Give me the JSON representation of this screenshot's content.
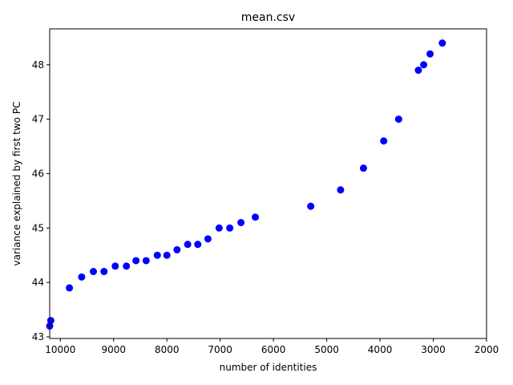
{
  "chart_data": {
    "type": "scatter",
    "title": "mean.csv",
    "xlabel": "number of identities",
    "ylabel": "variance explained by first two PC",
    "xlim": [
      10200,
      2000
    ],
    "ylim": [
      42.97,
      48.66
    ],
    "x_ticks": [
      10000,
      9000,
      8000,
      7000,
      6000,
      5000,
      4000,
      3000,
      2000
    ],
    "y_ticks": [
      43,
      44,
      45,
      46,
      47,
      48
    ],
    "grid": false,
    "marker_color": "#0000ff",
    "series": [
      {
        "points": [
          [
            10200,
            43.2
          ],
          [
            10180,
            43.3
          ],
          [
            9830,
            43.9
          ],
          [
            9600,
            44.1
          ],
          [
            9380,
            44.2
          ],
          [
            9180,
            44.2
          ],
          [
            8970,
            44.3
          ],
          [
            8760,
            44.3
          ],
          [
            8580,
            44.4
          ],
          [
            8390,
            44.4
          ],
          [
            8180,
            44.5
          ],
          [
            8000,
            44.5
          ],
          [
            7810,
            44.6
          ],
          [
            7610,
            44.7
          ],
          [
            7420,
            44.7
          ],
          [
            7230,
            44.8
          ],
          [
            7020,
            45.0
          ],
          [
            6820,
            45.0
          ],
          [
            6610,
            45.1
          ],
          [
            6340,
            45.2
          ],
          [
            5300,
            45.4
          ],
          [
            4740,
            45.7
          ],
          [
            4310,
            46.1
          ],
          [
            3930,
            46.6
          ],
          [
            3650,
            47.0
          ],
          [
            3280,
            47.9
          ],
          [
            3180,
            48.0
          ],
          [
            3060,
            48.2
          ],
          [
            2830,
            48.4
          ]
        ]
      }
    ]
  }
}
